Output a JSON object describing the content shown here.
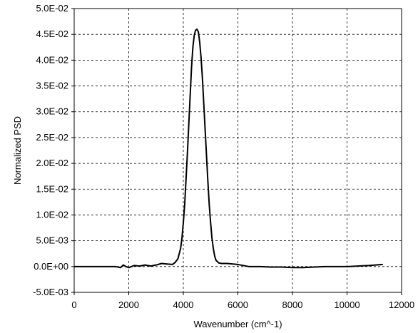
{
  "chart_data": {
    "type": "line",
    "title": "",
    "xlabel": "Wavenumber (cm^-1)",
    "ylabel": "Normalized PSD",
    "xlim": [
      0,
      12000
    ],
    "ylim": [
      -0.005,
      0.05
    ],
    "xticks": [
      0,
      2000,
      4000,
      6000,
      8000,
      10000,
      12000
    ],
    "xtick_labels": [
      "0",
      "2000",
      "4000",
      "6000",
      "8000",
      "10000",
      "12000"
    ],
    "yticks": [
      -0.005,
      0,
      0.005,
      0.01,
      0.015,
      0.02,
      0.025,
      0.03,
      0.035,
      0.04,
      0.045,
      0.05
    ],
    "ytick_labels": [
      "-5.0E-03",
      "0.0E+00",
      "5.0E-03",
      "1.0E-02",
      "1.5E-02",
      "2.0E-02",
      "2.5E-02",
      "3.0E-02",
      "3.5E-02",
      "4.0E-02",
      "4.5E-02",
      "5.0E-02"
    ],
    "grid": true,
    "line_color": "#000000",
    "series": [
      {
        "x": [
          0,
          800,
          1500,
          1700,
          1800,
          1900,
          2000,
          2200,
          2400,
          2600,
          2800,
          3000,
          3200,
          3400,
          3600,
          3700,
          3800,
          3900,
          3950,
          4000,
          4050,
          4100,
          4150,
          4200,
          4250,
          4300,
          4350,
          4400,
          4450,
          4500,
          4550,
          4600,
          4650,
          4700,
          4750,
          4800,
          4850,
          4900,
          4950,
          5000,
          5050,
          5100,
          5150,
          5200,
          5300,
          5400,
          5600,
          6000,
          6400,
          6800,
          7200,
          7600,
          8000,
          8400,
          8800,
          9200,
          9600,
          10000,
          10400,
          10800,
          11300
        ],
        "y": [
          0,
          0,
          0,
          -0.0002,
          0.0003,
          0,
          -0.0002,
          0.0002,
          0.0001,
          0.0003,
          0.0001,
          0.0003,
          0.0006,
          0.0005,
          0.0004,
          0.0008,
          0.0015,
          0.0035,
          0.0055,
          0.0085,
          0.012,
          0.017,
          0.022,
          0.0275,
          0.033,
          0.0385,
          0.0425,
          0.0448,
          0.0458,
          0.046,
          0.0455,
          0.0435,
          0.0405,
          0.0365,
          0.0315,
          0.0265,
          0.0215,
          0.0165,
          0.012,
          0.0085,
          0.0055,
          0.0035,
          0.002,
          0.0012,
          0.0007,
          0.0006,
          0.0006,
          0.0004,
          0,
          0,
          -0.0001,
          -0.0001,
          -0.0002,
          -0.0002,
          -0.0001,
          0,
          0,
          0,
          0.0001,
          0.0002,
          0.0004
        ]
      }
    ]
  }
}
